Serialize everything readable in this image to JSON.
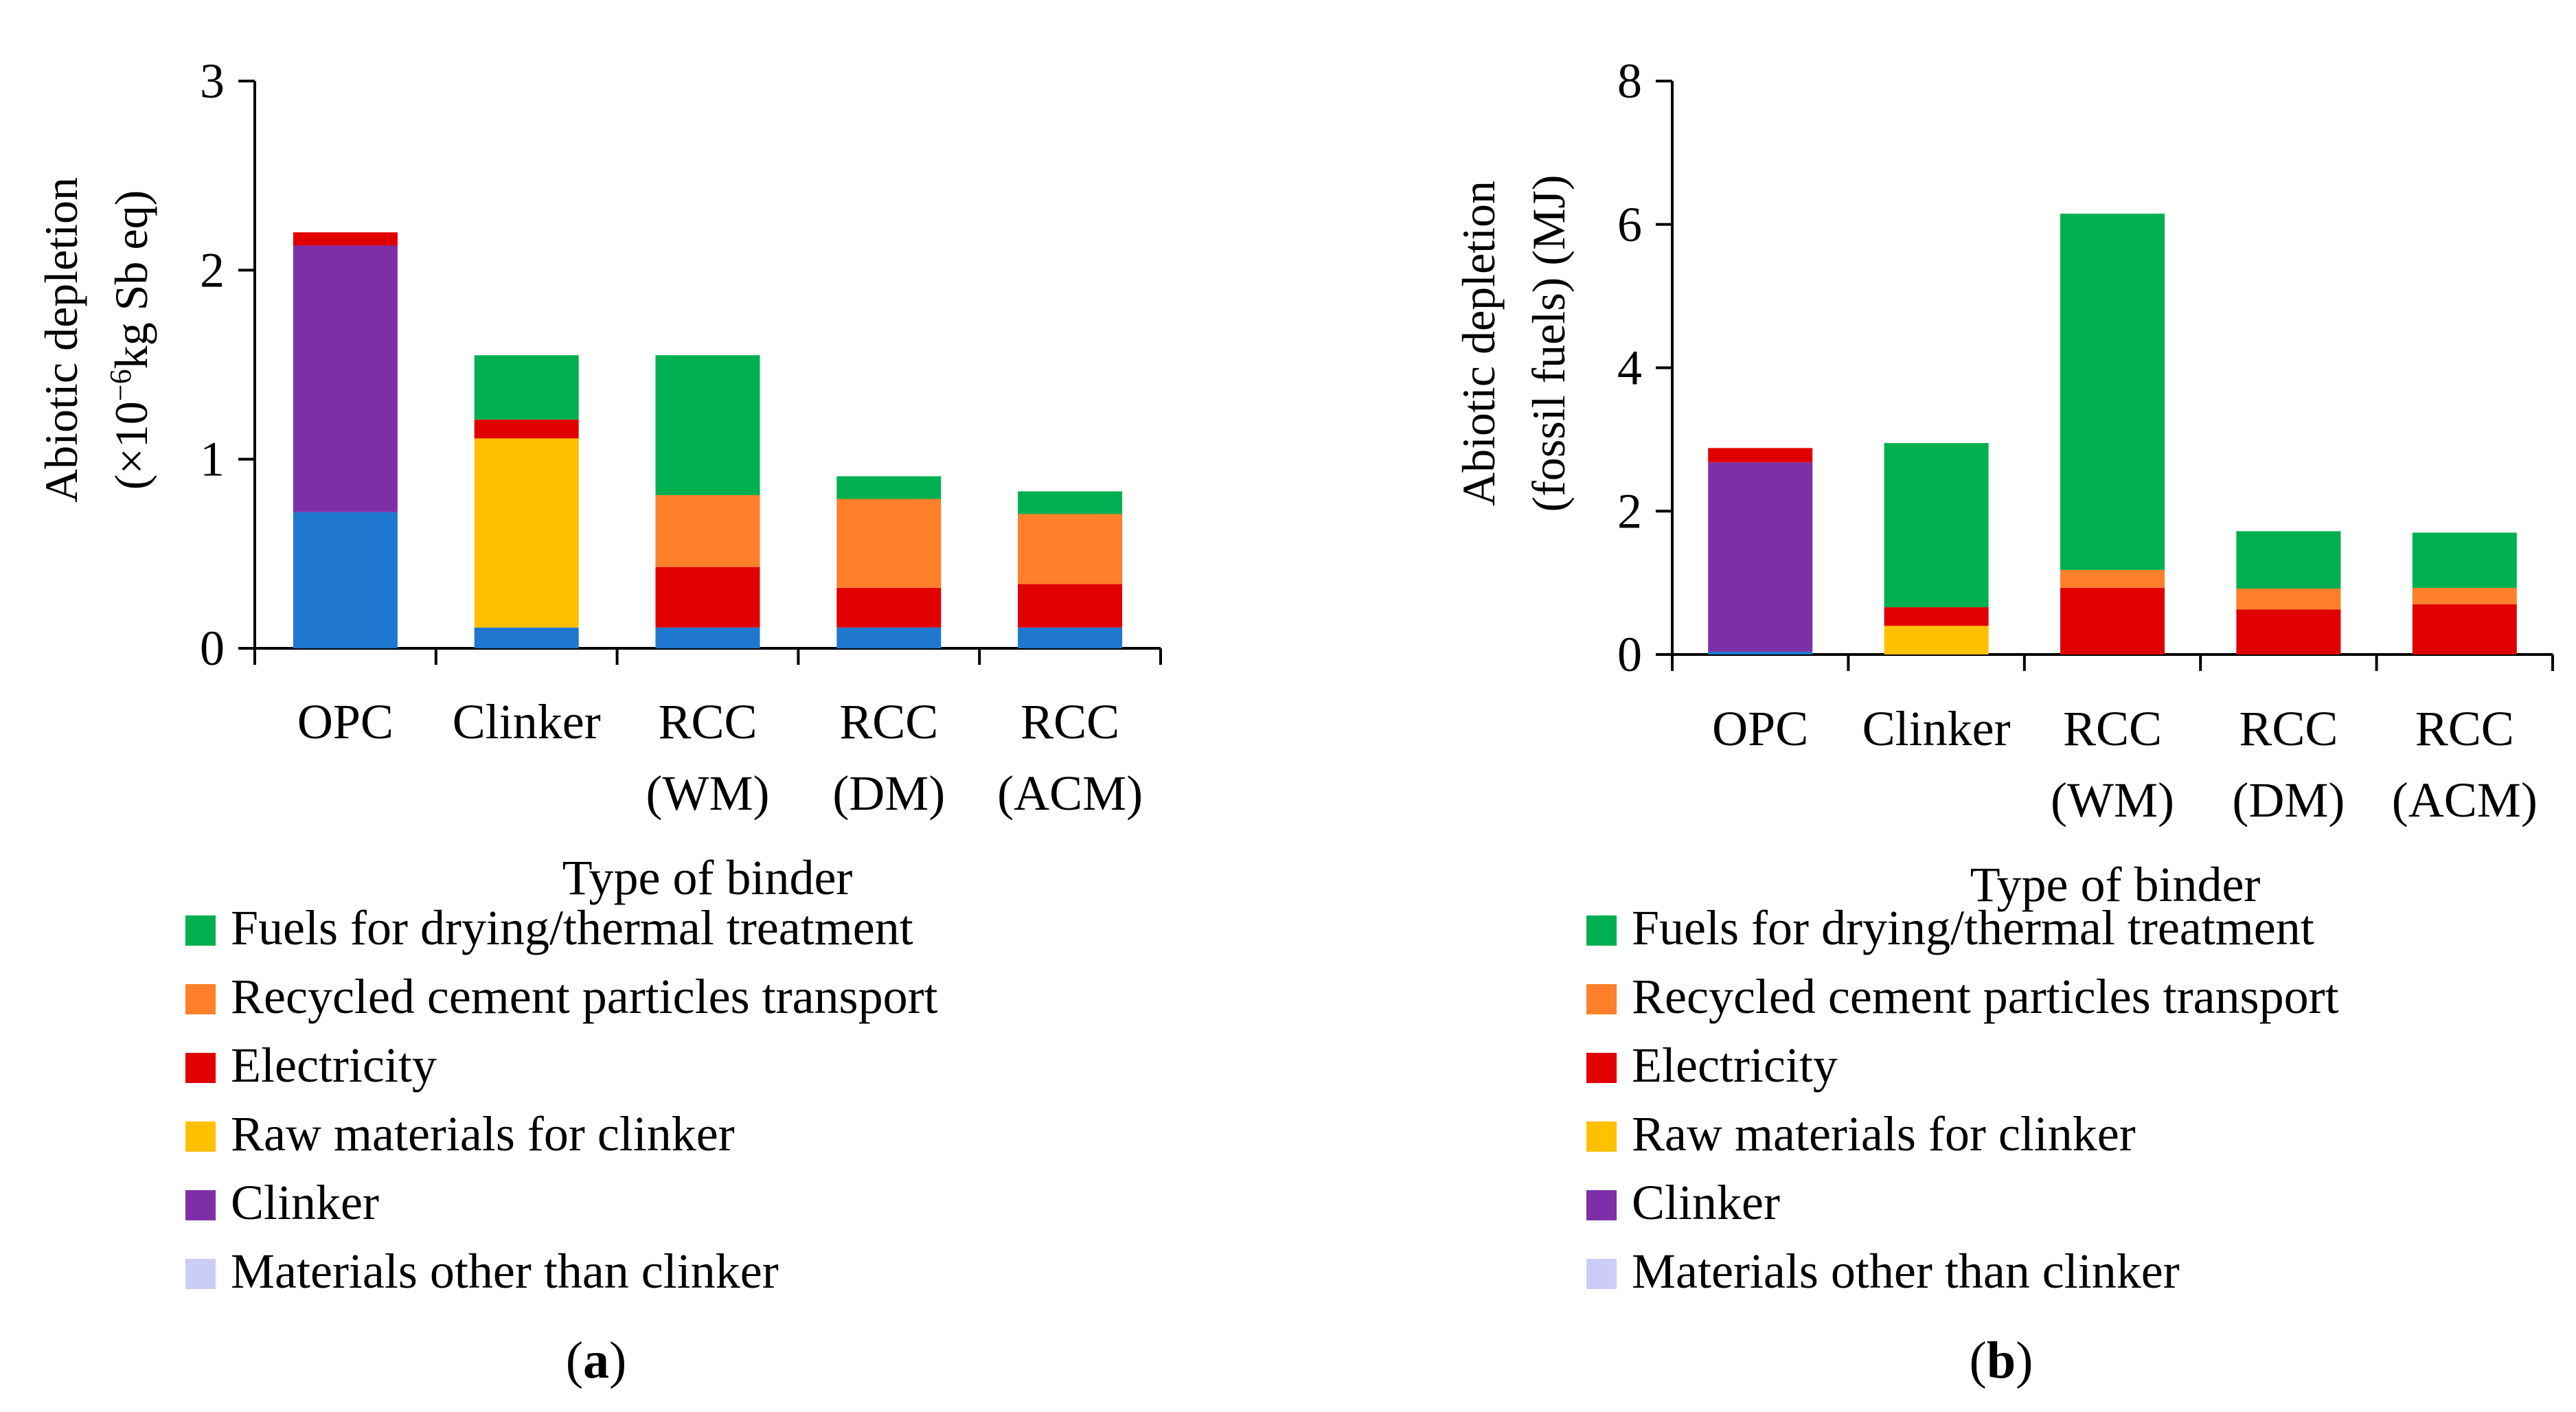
{
  "series_names": [
    "Materials other than clinker",
    "Clinker",
    "Raw materials for clinker",
    "Electricity",
    "Recycled cement particles transport",
    "Fuels for drying/thermal treatment"
  ],
  "series_colors": [
    "#1F77D0",
    "#7E2FA8",
    "#FFC000",
    "#E00000",
    "#FF7F2A",
    "#00B050"
  ],
  "legend_order": [
    5,
    4,
    3,
    2,
    1,
    0
  ],
  "legend_swatch_colors": [
    "#00B050",
    "#FF7F2A",
    "#E00000",
    "#FFC000",
    "#7E2FA8",
    "#CCCCF8"
  ],
  "chart_data": [
    {
      "type": "bar",
      "stacked": true,
      "panel_label": "a",
      "categories": [
        [
          "OPC"
        ],
        [
          "Clinker"
        ],
        [
          "RCC",
          "(WM)"
        ],
        [
          "RCC",
          "(DM)"
        ],
        [
          "RCC",
          "(ACM)"
        ]
      ],
      "ylabel_line1": "Abiotic depletion",
      "ylabel_line2_pre": "(×10",
      "ylabel_line2_sup": "−6",
      "ylabel_line2_post": "kg Sb eq)",
      "xlabel": "Type of binder",
      "ylim": [
        0,
        3
      ],
      "yticks": [
        0,
        1,
        2,
        3
      ],
      "series": [
        {
          "name": "Materials other than clinker",
          "values": [
            0.72,
            0.11,
            0.11,
            0.11,
            0.11
          ]
        },
        {
          "name": "Clinker",
          "values": [
            1.41,
            0,
            0,
            0,
            0
          ]
        },
        {
          "name": "Raw materials for clinker",
          "values": [
            0,
            1.0,
            0,
            0,
            0
          ]
        },
        {
          "name": "Electricity",
          "values": [
            0.07,
            0.1,
            0.32,
            0.21,
            0.23
          ]
        },
        {
          "name": "Recycled cement particles transport",
          "values": [
            0,
            0,
            0.38,
            0.47,
            0.37
          ]
        },
        {
          "name": "Fuels for drying/thermal treatment",
          "values": [
            0,
            0.34,
            0.74,
            0.12,
            0.12
          ]
        }
      ]
    },
    {
      "type": "bar",
      "stacked": true,
      "panel_label": "b",
      "categories": [
        [
          "OPC"
        ],
        [
          "Clinker"
        ],
        [
          "RCC",
          "(WM)"
        ],
        [
          "RCC",
          "(DM)"
        ],
        [
          "RCC",
          "(ACM)"
        ]
      ],
      "ylabel_line1": "Abiotic depletion",
      "ylabel_line2": "(fossil fuels) (MJ)",
      "xlabel": "Type of binder",
      "ylim": [
        0,
        8
      ],
      "yticks": [
        0,
        2,
        4,
        6,
        8
      ],
      "series": [
        {
          "name": "Materials other than clinker",
          "values": [
            0.04,
            0,
            0,
            0,
            0
          ]
        },
        {
          "name": "Clinker",
          "values": [
            2.64,
            0,
            0,
            0,
            0
          ]
        },
        {
          "name": "Raw materials for clinker",
          "values": [
            0,
            0.4,
            0,
            0,
            0
          ]
        },
        {
          "name": "Electricity",
          "values": [
            0.2,
            0.26,
            0.93,
            0.63,
            0.7
          ]
        },
        {
          "name": "Recycled cement particles transport",
          "values": [
            0,
            0,
            0.25,
            0.29,
            0.23
          ]
        },
        {
          "name": "Fuels for drying/thermal treatment",
          "values": [
            0,
            2.29,
            4.97,
            0.8,
            0.77
          ]
        }
      ]
    }
  ]
}
